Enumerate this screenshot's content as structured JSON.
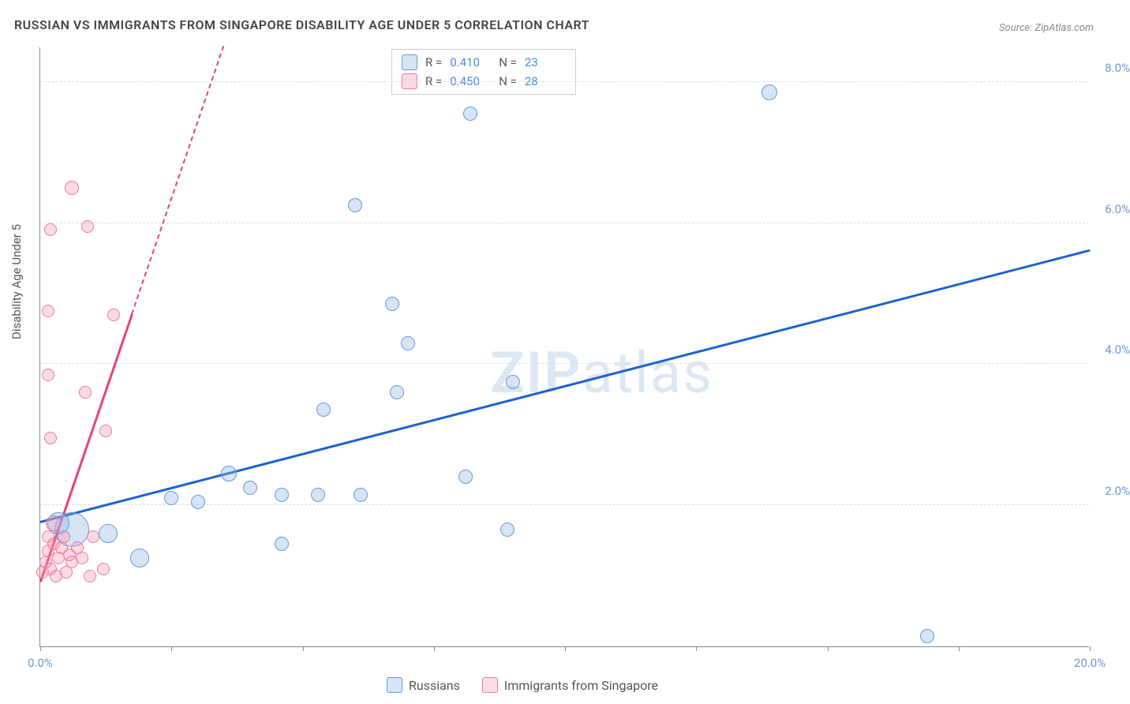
{
  "title": "RUSSIAN VS IMMIGRANTS FROM SINGAPORE DISABILITY AGE UNDER 5 CORRELATION CHART",
  "source_prefix": "Source: ",
  "source": "ZipAtlas.com",
  "yaxis_label": "Disability Age Under 5",
  "watermark_bold": "ZIP",
  "watermark_rest": "atlas",
  "chart": {
    "type": "scatter",
    "background_color": "#ffffff",
    "grid_color": "#dddddd",
    "axis_color": "#888888",
    "xlim": [
      0,
      20
    ],
    "ylim": [
      0,
      8.5
    ],
    "xticks": [
      0,
      2.5,
      5,
      7.5,
      10,
      12.5,
      15,
      17.5,
      20
    ],
    "xtick_labels": {
      "0": "0.0%",
      "20": "20.0%"
    },
    "yticks": [
      2,
      4,
      6,
      8
    ],
    "ytick_labels": {
      "2": "2.0%",
      "4": "4.0%",
      "6": "6.0%",
      "8": "8.0%"
    },
    "tick_color": "#6b98d4",
    "label_fontsize": 15,
    "title_fontsize": 16,
    "series": [
      {
        "name": "Russians",
        "fill": "rgba(135, 180, 230, 0.35)",
        "stroke": "#6b98d4",
        "R": "0.410",
        "N": "23",
        "trend": {
          "x1": 0,
          "y1": 1.75,
          "x2": 20,
          "y2": 5.6,
          "color": "#1e62d0",
          "width": 2.5,
          "solid_frac": 1.0
        },
        "points": [
          {
            "x": 0.6,
            "y": 1.65,
            "r": 22
          },
          {
            "x": 0.35,
            "y": 1.75,
            "r": 14
          },
          {
            "x": 1.3,
            "y": 1.6,
            "r": 12
          },
          {
            "x": 1.9,
            "y": 1.25,
            "r": 12
          },
          {
            "x": 2.5,
            "y": 2.1,
            "r": 9
          },
          {
            "x": 3.0,
            "y": 2.05,
            "r": 9
          },
          {
            "x": 3.6,
            "y": 2.45,
            "r": 10
          },
          {
            "x": 4.0,
            "y": 2.25,
            "r": 9
          },
          {
            "x": 4.6,
            "y": 2.15,
            "r": 9
          },
          {
            "x": 4.6,
            "y": 1.45,
            "r": 9
          },
          {
            "x": 5.3,
            "y": 2.15,
            "r": 9
          },
          {
            "x": 5.4,
            "y": 3.35,
            "r": 9
          },
          {
            "x": 6.1,
            "y": 2.15,
            "r": 9
          },
          {
            "x": 6.8,
            "y": 3.6,
            "r": 9
          },
          {
            "x": 6.7,
            "y": 4.85,
            "r": 9
          },
          {
            "x": 6.0,
            "y": 6.25,
            "r": 9
          },
          {
            "x": 7.0,
            "y": 4.3,
            "r": 9
          },
          {
            "x": 8.1,
            "y": 2.4,
            "r": 9
          },
          {
            "x": 8.2,
            "y": 7.55,
            "r": 9
          },
          {
            "x": 8.9,
            "y": 1.65,
            "r": 9
          },
          {
            "x": 9.0,
            "y": 3.75,
            "r": 9
          },
          {
            "x": 13.9,
            "y": 7.85,
            "r": 10
          },
          {
            "x": 16.9,
            "y": 0.15,
            "r": 9
          }
        ]
      },
      {
        "name": "Immigrants from Singapore",
        "fill": "rgba(245, 150, 175, 0.35)",
        "stroke": "#e97ba0",
        "R": "0.450",
        "N": "28",
        "trend": {
          "x1": 0,
          "y1": 0.9,
          "x2": 3.5,
          "y2": 8.5,
          "color": "#e8446e",
          "width": 2.5,
          "solid_frac": 0.5
        },
        "points": [
          {
            "x": 0.05,
            "y": 1.05,
            "r": 8
          },
          {
            "x": 0.1,
            "y": 1.2,
            "r": 8
          },
          {
            "x": 0.15,
            "y": 1.35,
            "r": 8
          },
          {
            "x": 0.15,
            "y": 1.55,
            "r": 8
          },
          {
            "x": 0.2,
            "y": 1.1,
            "r": 8
          },
          {
            "x": 0.25,
            "y": 1.45,
            "r": 8
          },
          {
            "x": 0.25,
            "y": 1.75,
            "r": 10
          },
          {
            "x": 0.3,
            "y": 1.0,
            "r": 8
          },
          {
            "x": 0.35,
            "y": 1.25,
            "r": 8
          },
          {
            "x": 0.4,
            "y": 1.4,
            "r": 8
          },
          {
            "x": 0.45,
            "y": 1.55,
            "r": 8
          },
          {
            "x": 0.5,
            "y": 1.05,
            "r": 8
          },
          {
            "x": 0.55,
            "y": 1.3,
            "r": 8
          },
          {
            "x": 0.6,
            "y": 1.2,
            "r": 8
          },
          {
            "x": 0.7,
            "y": 1.4,
            "r": 8
          },
          {
            "x": 0.8,
            "y": 1.25,
            "r": 8
          },
          {
            "x": 0.95,
            "y": 1.0,
            "r": 8
          },
          {
            "x": 0.2,
            "y": 2.95,
            "r": 8
          },
          {
            "x": 0.15,
            "y": 3.85,
            "r": 8
          },
          {
            "x": 0.15,
            "y": 4.75,
            "r": 8
          },
          {
            "x": 0.85,
            "y": 3.6,
            "r": 8
          },
          {
            "x": 0.6,
            "y": 6.5,
            "r": 9
          },
          {
            "x": 0.2,
            "y": 5.9,
            "r": 8
          },
          {
            "x": 0.9,
            "y": 5.95,
            "r": 8
          },
          {
            "x": 1.25,
            "y": 3.05,
            "r": 8
          },
          {
            "x": 1.4,
            "y": 4.7,
            "r": 8
          },
          {
            "x": 1.2,
            "y": 1.1,
            "r": 8
          },
          {
            "x": 1.0,
            "y": 1.55,
            "r": 8
          }
        ]
      }
    ]
  },
  "legend_top": {
    "r_label": "R  =",
    "n_label": "N  ="
  },
  "legend_bottom": {
    "swatch_blue_fill": "rgba(135,180,230,0.5)",
    "swatch_blue_stroke": "#6b98d4",
    "swatch_pink_fill": "rgba(245,150,175,0.5)",
    "swatch_pink_stroke": "#e97ba0"
  }
}
